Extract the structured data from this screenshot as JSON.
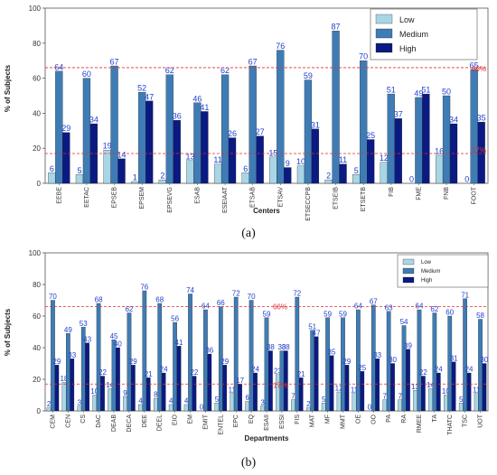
{
  "colors": {
    "low": "#a9d6e5",
    "medium": "#3f7cb5",
    "high": "#0b1a82",
    "ref": "#e03030",
    "label": "#1f3fd0"
  },
  "chart_data": [
    {
      "type": "bar",
      "caption": "(a)",
      "xlabel": "Centers",
      "ylabel": "% of Subjects",
      "ylim": [
        0,
        100
      ],
      "yticks": [
        0,
        20,
        40,
        60,
        80,
        100
      ],
      "grid": false,
      "legend_position": "top-right",
      "categories": [
        "EEBE",
        "EETAC",
        "EPSEB",
        "EPSEM",
        "EPSEVG",
        "ESAB",
        "ESEIAAT",
        "ETSAB",
        "ETSAV",
        "ETSECCPB",
        "ETSEIB",
        "ETSETB",
        "FIB",
        "FME",
        "FNB",
        "FOOT"
      ],
      "series": [
        {
          "name": "Low",
          "values": [
            6,
            5,
            19,
            1,
            2,
            13,
            11,
            6,
            15,
            10,
            2,
            5,
            12,
            0,
            16,
            0
          ]
        },
        {
          "name": "Medium",
          "values": [
            64,
            60,
            67,
            52,
            62,
            46,
            62,
            67,
            76,
            59,
            87,
            70,
            51,
            49,
            50,
            65
          ]
        },
        {
          "name": "High",
          "values": [
            29,
            34,
            14,
            47,
            36,
            41,
            26,
            27,
            9,
            31,
            11,
            25,
            37,
            51,
            34,
            35
          ]
        }
      ],
      "reference_lines": [
        {
          "value": 66,
          "label": "66%"
        },
        {
          "value": 17,
          "label": "17%"
        }
      ]
    },
    {
      "type": "bar",
      "caption": "(b)",
      "xlabel": "Departments",
      "ylabel": "% of Subjects",
      "ylim": [
        0,
        100
      ],
      "yticks": [
        0,
        20,
        40,
        60,
        80,
        100
      ],
      "grid": false,
      "legend_position": "top-right",
      "categories": [
        "CEM",
        "CEN",
        "CS",
        "DAC",
        "DEAB",
        "DECA",
        "DEE",
        "DEEL",
        "EIO",
        "EM",
        "EMIT",
        "ENTEL",
        "EPC",
        "EQ",
        "ESAII",
        "ESSI",
        "FIS",
        "MAT",
        "MF",
        "MMT",
        "OE",
        "OO",
        "PA",
        "RA",
        "RMEE",
        "TA",
        "THATC",
        "TSC",
        "UOT"
      ],
      "series": [
        {
          "name": "Low",
          "values": [
            2,
            18,
            3,
            10,
            14,
            9,
            4,
            8,
            4,
            4,
            0,
            5,
            11,
            6,
            3,
            23,
            7,
            2,
            5,
            12,
            11,
            0,
            7,
            7,
            13,
            14,
            10,
            5,
            11
          ]
        },
        {
          "name": "Medium",
          "values": [
            70,
            49,
            53,
            68,
            45,
            62,
            76,
            68,
            56,
            74,
            64,
            66,
            72,
            70,
            59,
            38,
            72,
            51,
            59,
            59,
            64,
            67,
            63,
            54,
            64,
            62,
            60,
            71,
            58
          ]
        },
        {
          "name": "High",
          "values": [
            29,
            33,
            43,
            22,
            40,
            29,
            21,
            24,
            41,
            22,
            36,
            29,
            17,
            24,
            38,
            38,
            21,
            47,
            35,
            29,
            25,
            33,
            30,
            39,
            22,
            24,
            31,
            24,
            30
          ]
        }
      ],
      "reference_lines": [
        {
          "value": 66,
          "label": "66%"
        },
        {
          "value": 17,
          "label": "17%"
        }
      ]
    }
  ]
}
